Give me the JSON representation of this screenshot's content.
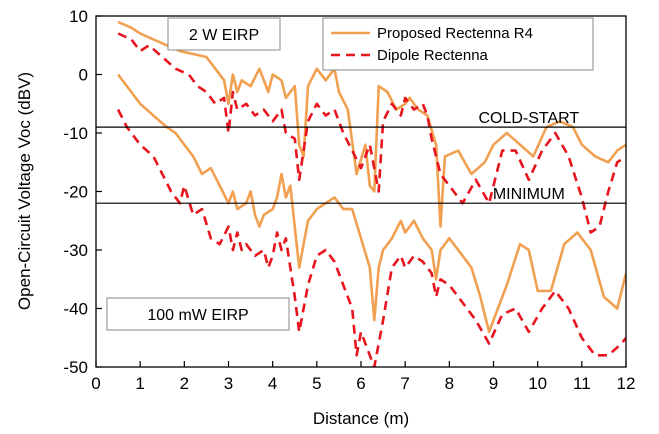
{
  "chart_data": {
    "type": "line",
    "xlabel": "Distance (m)",
    "ylabel": "Open-Circuit Voltage Voc (dBV)",
    "xlim": [
      0,
      12
    ],
    "ylim": [
      -50,
      10
    ],
    "xticks": [
      0,
      1,
      2,
      3,
      4,
      5,
      6,
      7,
      8,
      9,
      10,
      11,
      12
    ],
    "yticks": [
      -50,
      -40,
      -30,
      -20,
      -10,
      0,
      10
    ],
    "xtick_labels": [
      "0",
      "1",
      "2",
      "3",
      "4",
      "5",
      "6",
      "7",
      "8",
      "9",
      "10",
      "11",
      "12"
    ],
    "ytick_labels": [
      "-50",
      "-40",
      "-30",
      "-20",
      "-10",
      "0",
      "10"
    ],
    "legend_position": "top-right",
    "colors": {
      "proposed": "#f0a050",
      "dipole": "#e8141e",
      "reference": "#000000"
    },
    "series": [
      {
        "name": "Proposed Rectenna R4",
        "style": "solid",
        "legend": true,
        "points": [
          [
            0.5,
            9
          ],
          [
            0.8,
            8
          ],
          [
            1.0,
            7
          ],
          [
            1.3,
            6
          ],
          [
            1.6,
            5
          ],
          [
            1.9,
            4
          ],
          [
            2.2,
            3.5
          ],
          [
            2.5,
            3
          ],
          [
            2.7,
            1
          ],
          [
            2.9,
            -1
          ],
          [
            3.0,
            -5
          ],
          [
            3.1,
            0
          ],
          [
            3.2,
            -3
          ],
          [
            3.3,
            -1
          ],
          [
            3.5,
            -2
          ],
          [
            3.7,
            1
          ],
          [
            3.9,
            -3
          ],
          [
            4.0,
            0
          ],
          [
            4.2,
            -1
          ],
          [
            4.3,
            -4
          ],
          [
            4.5,
            -2
          ],
          [
            4.6,
            -12
          ],
          [
            4.7,
            -14
          ],
          [
            4.8,
            -2
          ],
          [
            5.0,
            1
          ],
          [
            5.2,
            -1
          ],
          [
            5.4,
            1
          ],
          [
            5.5,
            -3
          ],
          [
            5.7,
            -6
          ],
          [
            5.9,
            -17
          ],
          [
            6.1,
            -12
          ],
          [
            6.2,
            -19
          ],
          [
            6.3,
            -20
          ],
          [
            6.4,
            -2
          ],
          [
            6.6,
            -3
          ],
          [
            6.8,
            -6
          ],
          [
            7.0,
            -5
          ],
          [
            7.1,
            -4
          ],
          [
            7.3,
            -6
          ],
          [
            7.5,
            -7
          ],
          [
            7.7,
            -12
          ],
          [
            7.8,
            -26
          ],
          [
            7.9,
            -14
          ],
          [
            8.2,
            -13
          ],
          [
            8.5,
            -17
          ],
          [
            8.8,
            -15
          ],
          [
            9.0,
            -12
          ],
          [
            9.3,
            -10
          ],
          [
            9.6,
            -12
          ],
          [
            9.9,
            -14
          ],
          [
            10.2,
            -9
          ],
          [
            10.5,
            -8
          ],
          [
            10.8,
            -9
          ],
          [
            11.0,
            -12
          ],
          [
            11.3,
            -14
          ],
          [
            11.6,
            -15
          ],
          [
            11.8,
            -13
          ],
          [
            12.0,
            -12
          ]
        ]
      },
      {
        "name": "Dipole Rectenna",
        "style": "dashed",
        "legend": true,
        "points": [
          [
            0.5,
            7
          ],
          [
            0.8,
            6
          ],
          [
            1.0,
            4
          ],
          [
            1.2,
            5
          ],
          [
            1.5,
            3
          ],
          [
            1.8,
            1
          ],
          [
            2.1,
            0
          ],
          [
            2.3,
            -2
          ],
          [
            2.5,
            -3
          ],
          [
            2.7,
            -5
          ],
          [
            2.9,
            -4
          ],
          [
            3.0,
            -10
          ],
          [
            3.1,
            -3
          ],
          [
            3.2,
            -6
          ],
          [
            3.4,
            -5
          ],
          [
            3.6,
            -7
          ],
          [
            3.8,
            -6
          ],
          [
            4.0,
            -8
          ],
          [
            4.2,
            -6
          ],
          [
            4.3,
            -10
          ],
          [
            4.5,
            -11
          ],
          [
            4.6,
            -18
          ],
          [
            4.7,
            -13
          ],
          [
            4.8,
            -8
          ],
          [
            5.0,
            -5
          ],
          [
            5.2,
            -7
          ],
          [
            5.4,
            -6
          ],
          [
            5.6,
            -10
          ],
          [
            5.8,
            -13
          ],
          [
            6.0,
            -16
          ],
          [
            6.2,
            -12
          ],
          [
            6.4,
            -20
          ],
          [
            6.5,
            -8
          ],
          [
            6.7,
            -5
          ],
          [
            6.9,
            -7
          ],
          [
            7.0,
            -4
          ],
          [
            7.2,
            -6
          ],
          [
            7.4,
            -5
          ],
          [
            7.5,
            -7
          ],
          [
            7.6,
            -11
          ],
          [
            7.7,
            -14
          ],
          [
            7.8,
            -17
          ],
          [
            8.0,
            -19
          ],
          [
            8.3,
            -22
          ],
          [
            8.6,
            -18
          ],
          [
            8.9,
            -22
          ],
          [
            9.2,
            -13
          ],
          [
            9.5,
            -13
          ],
          [
            9.8,
            -18
          ],
          [
            10.1,
            -13
          ],
          [
            10.4,
            -10
          ],
          [
            10.7,
            -14
          ],
          [
            11.0,
            -21
          ],
          [
            11.2,
            -27
          ],
          [
            11.4,
            -26
          ],
          [
            11.6,
            -20
          ],
          [
            11.8,
            -15
          ],
          [
            12.0,
            -14
          ]
        ]
      },
      {
        "name": "Proposed Rectenna R4",
        "style": "solid",
        "legend": false,
        "points": [
          [
            0.5,
            0
          ],
          [
            0.8,
            -3
          ],
          [
            1.0,
            -5
          ],
          [
            1.3,
            -7
          ],
          [
            1.6,
            -9
          ],
          [
            1.8,
            -10
          ],
          [
            2.0,
            -12
          ],
          [
            2.2,
            -14
          ],
          [
            2.4,
            -17
          ],
          [
            2.6,
            -16
          ],
          [
            2.8,
            -19
          ],
          [
            3.0,
            -22
          ],
          [
            3.1,
            -20
          ],
          [
            3.2,
            -23
          ],
          [
            3.4,
            -22
          ],
          [
            3.5,
            -20
          ],
          [
            3.6,
            -24
          ],
          [
            3.7,
            -26
          ],
          [
            3.8,
            -24
          ],
          [
            4.0,
            -23
          ],
          [
            4.1,
            -21
          ],
          [
            4.2,
            -17
          ],
          [
            4.3,
            -21
          ],
          [
            4.4,
            -19
          ],
          [
            4.6,
            -33
          ],
          [
            4.8,
            -25
          ],
          [
            5.0,
            -23
          ],
          [
            5.2,
            -22
          ],
          [
            5.4,
            -21
          ],
          [
            5.6,
            -23
          ],
          [
            5.8,
            -23
          ],
          [
            6.0,
            -28
          ],
          [
            6.2,
            -33
          ],
          [
            6.3,
            -42
          ],
          [
            6.4,
            -33
          ],
          [
            6.5,
            -30
          ],
          [
            6.7,
            -28
          ],
          [
            6.9,
            -25
          ],
          [
            7.0,
            -27
          ],
          [
            7.2,
            -25
          ],
          [
            7.4,
            -28
          ],
          [
            7.6,
            -30
          ],
          [
            7.7,
            -35
          ],
          [
            7.8,
            -30
          ],
          [
            8.0,
            -28
          ],
          [
            8.3,
            -31
          ],
          [
            8.5,
            -33
          ],
          [
            8.7,
            -38
          ],
          [
            8.9,
            -44
          ],
          [
            9.1,
            -40
          ],
          [
            9.3,
            -36
          ],
          [
            9.6,
            -29
          ],
          [
            9.8,
            -30
          ],
          [
            10.0,
            -37
          ],
          [
            10.3,
            -37
          ],
          [
            10.6,
            -29
          ],
          [
            10.9,
            -27
          ],
          [
            11.2,
            -30
          ],
          [
            11.5,
            -38
          ],
          [
            11.8,
            -40
          ],
          [
            12.0,
            -34
          ]
        ]
      },
      {
        "name": "Dipole Rectenna",
        "style": "dashed",
        "legend": false,
        "points": [
          [
            0.5,
            -6
          ],
          [
            0.7,
            -9
          ],
          [
            1.0,
            -12
          ],
          [
            1.3,
            -14
          ],
          [
            1.5,
            -17
          ],
          [
            1.7,
            -20
          ],
          [
            1.9,
            -22
          ],
          [
            2.0,
            -19
          ],
          [
            2.2,
            -24
          ],
          [
            2.4,
            -23
          ],
          [
            2.6,
            -28
          ],
          [
            2.8,
            -29
          ],
          [
            3.0,
            -26
          ],
          [
            3.1,
            -30
          ],
          [
            3.2,
            -27
          ],
          [
            3.3,
            -30
          ],
          [
            3.4,
            -29
          ],
          [
            3.6,
            -31
          ],
          [
            3.8,
            -30
          ],
          [
            3.9,
            -33
          ],
          [
            4.0,
            -31
          ],
          [
            4.1,
            -27
          ],
          [
            4.2,
            -30
          ],
          [
            4.3,
            -28
          ],
          [
            4.4,
            -33
          ],
          [
            4.5,
            -38
          ],
          [
            4.6,
            -44
          ],
          [
            4.8,
            -36
          ],
          [
            5.0,
            -31
          ],
          [
            5.2,
            -30
          ],
          [
            5.4,
            -32
          ],
          [
            5.6,
            -36
          ],
          [
            5.8,
            -40
          ],
          [
            5.9,
            -48
          ],
          [
            6.0,
            -44
          ],
          [
            6.2,
            -48
          ],
          [
            6.3,
            -50
          ],
          [
            6.5,
            -42
          ],
          [
            6.7,
            -33
          ],
          [
            6.9,
            -31
          ],
          [
            7.0,
            -33
          ],
          [
            7.2,
            -31
          ],
          [
            7.4,
            -32
          ],
          [
            7.6,
            -34
          ],
          [
            7.7,
            -38
          ],
          [
            7.8,
            -35
          ],
          [
            8.0,
            -36
          ],
          [
            8.3,
            -39
          ],
          [
            8.6,
            -42
          ],
          [
            8.9,
            -46
          ],
          [
            9.2,
            -41
          ],
          [
            9.5,
            -40
          ],
          [
            9.8,
            -44
          ],
          [
            10.1,
            -40
          ],
          [
            10.4,
            -37
          ],
          [
            10.7,
            -40
          ],
          [
            11.0,
            -45
          ],
          [
            11.3,
            -48
          ],
          [
            11.6,
            -48
          ],
          [
            11.9,
            -46
          ],
          [
            12.0,
            -45
          ]
        ]
      }
    ],
    "reference_lines": [
      {
        "y": -9,
        "label": "COLD-START",
        "label_x": 9.8
      },
      {
        "y": -22,
        "label": "MINIMUM",
        "label_x": 9.8
      }
    ],
    "annotations": [
      {
        "text": "2 W EIRP"
      },
      {
        "text": "100 mW EIRP"
      }
    ]
  }
}
